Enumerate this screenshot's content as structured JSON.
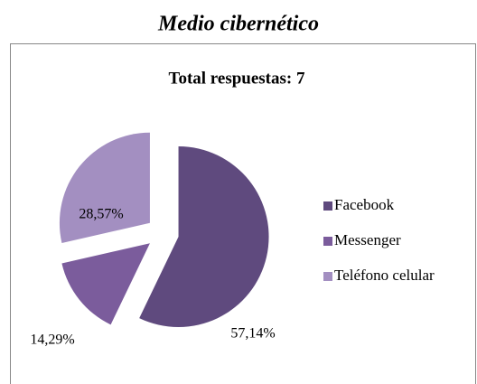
{
  "heading": "Medio cibernético",
  "chart_data": {
    "type": "pie",
    "title": "Total respuestas: 7",
    "categories": [
      "Facebook",
      "Messenger",
      "Teléfono celular"
    ],
    "values": [
      57.14,
      14.29,
      28.57
    ],
    "value_labels": [
      "57,14%",
      "14,29%",
      "28,57%"
    ],
    "colors": [
      "#5f4a7e",
      "#7b5c9c",
      "#a38fc1"
    ],
    "legend": "right"
  }
}
